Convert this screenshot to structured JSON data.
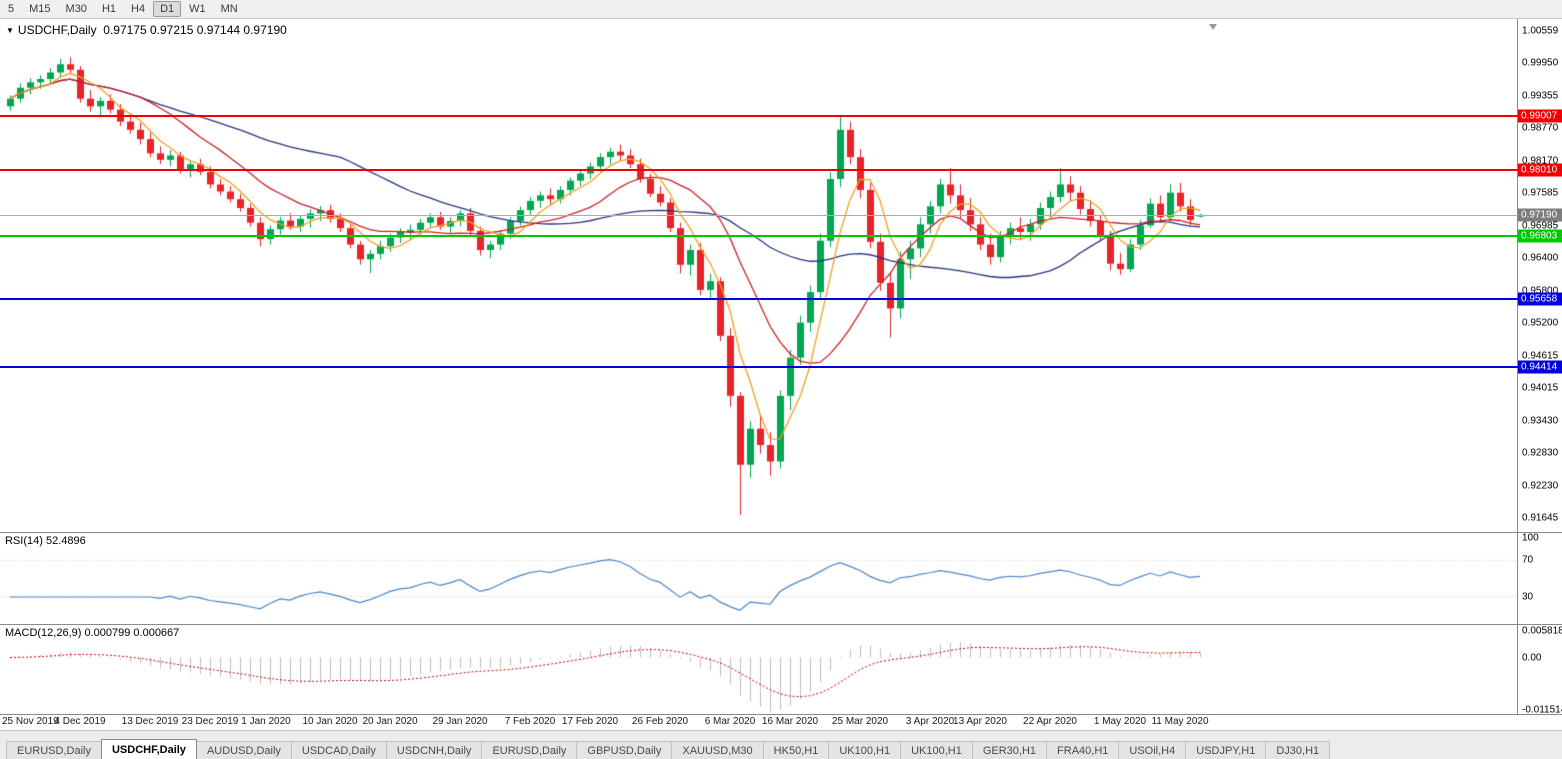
{
  "colors": {
    "up": "#00a651",
    "down": "#e8232a",
    "chrome_bg": "#f0f0f0"
  },
  "toolbar": {
    "timeframes": [
      {
        "label": "5",
        "active": false
      },
      {
        "label": "M15",
        "active": false
      },
      {
        "label": "M30",
        "active": false
      },
      {
        "label": "H1",
        "active": false
      },
      {
        "label": "H4",
        "active": false
      },
      {
        "label": "D1",
        "active": true
      },
      {
        "label": "W1",
        "active": false
      },
      {
        "label": "MN",
        "active": false
      }
    ]
  },
  "chart": {
    "caret": "▼",
    "header": "USDCHF,Daily",
    "ohlc": "0.97175 0.97215 0.97144 0.97190"
  },
  "chart_data": {
    "type": "candlestick",
    "symbol": "USDCHF",
    "timeframe": "Daily",
    "current": {
      "open": 0.97175,
      "high": 0.97215,
      "low": 0.97144,
      "close": 0.9719
    },
    "y_axis_labels": [
      "1.00559",
      "0.99950",
      "0.99355",
      "0.98770",
      "0.98170",
      "0.97585",
      "0.96985",
      "0.96400",
      "0.95800",
      "0.95200",
      "0.94615",
      "0.94015",
      "0.93430",
      "0.92830",
      "0.92230",
      "0.91645"
    ],
    "x_ticks": [
      {
        "label": "25 Nov 2019",
        "index": 0
      },
      {
        "label": "4 Dec 2019",
        "index": 7
      },
      {
        "label": "13 Dec 2019",
        "index": 14
      },
      {
        "label": "23 Dec 2019",
        "index": 20
      },
      {
        "label": "1 Jan 2020",
        "index": 25.6
      },
      {
        "label": "10 Jan 2020",
        "index": 32
      },
      {
        "label": "20 Jan 2020",
        "index": 38
      },
      {
        "label": "29 Jan 2020",
        "index": 45
      },
      {
        "label": "7 Feb 2020",
        "index": 52
      },
      {
        "label": "17 Feb 2020",
        "index": 58
      },
      {
        "label": "26 Feb 2020",
        "index": 65
      },
      {
        "label": "6 Mar 2020",
        "index": 72
      },
      {
        "label": "16 Mar 2020",
        "index": 78
      },
      {
        "label": "25 Mar 2020",
        "index": 85
      },
      {
        "label": "3 Apr 2020",
        "index": 92
      },
      {
        "label": "13 Apr 2020",
        "index": 97
      },
      {
        "label": "22 Apr 2020",
        "index": 104
      },
      {
        "label": "1 May 2020",
        "index": 111
      },
      {
        "label": "11 May 2020",
        "index": 117
      }
    ],
    "horizontal_levels": [
      {
        "value": "0.99007",
        "color": "#f20000",
        "kind": "resistance"
      },
      {
        "value": "0.98010",
        "color": "#f20000",
        "kind": "resistance"
      },
      {
        "value": "0.96803",
        "color": "#00c800",
        "kind": "support"
      },
      {
        "value": "0.95658",
        "color": "#0000e0",
        "kind": "support"
      },
      {
        "value": "0.94414",
        "color": "#0000e0",
        "kind": "support"
      }
    ],
    "current_price_marker": {
      "value": "0.97190",
      "line_color": "#ababab",
      "tag_bg": "#7d7d7d"
    },
    "moving_averages": [
      {
        "period": 5,
        "color": "#f0a020"
      },
      {
        "period": 13,
        "color": "#cc2127"
      },
      {
        "period": 34,
        "color": "#24357d"
      }
    ],
    "rsi": {
      "header": "RSI(14) 52.4896",
      "period": 14,
      "levels": [
        "100",
        "70",
        "30"
      ],
      "line_color": "#4a86c8"
    },
    "macd": {
      "header": "MACD(12,26,9) 0.000799 0.000667",
      "fast": 12,
      "slow": 26,
      "signal": 9,
      "axis_labels": [
        "0.005818",
        "0.00",
        "-0.011514"
      ],
      "hist_color": "#bdbdbd",
      "signal_color": "#cc0000"
    },
    "candles": [
      [
        0.9918,
        0.9938,
        0.991,
        0.9932
      ],
      [
        0.9932,
        0.996,
        0.9925,
        0.9952
      ],
      [
        0.9952,
        0.997,
        0.994,
        0.9962
      ],
      [
        0.9962,
        0.9975,
        0.995,
        0.9968
      ],
      [
        0.9968,
        0.9988,
        0.9958,
        0.998
      ],
      [
        0.998,
        1.0005,
        0.997,
        0.9995
      ],
      [
        0.9995,
        1.0008,
        0.9978,
        0.9985
      ],
      [
        0.9985,
        0.9992,
        0.9925,
        0.9932
      ],
      [
        0.9932,
        0.9948,
        0.9908,
        0.9918
      ],
      [
        0.9918,
        0.9935,
        0.9898,
        0.9928
      ],
      [
        0.9928,
        0.994,
        0.9905,
        0.9912
      ],
      [
        0.9912,
        0.9922,
        0.9882,
        0.989
      ],
      [
        0.989,
        0.9905,
        0.9868,
        0.9875
      ],
      [
        0.9875,
        0.9888,
        0.9848,
        0.9858
      ],
      [
        0.9858,
        0.987,
        0.9825,
        0.9832
      ],
      [
        0.9832,
        0.9845,
        0.9812,
        0.982
      ],
      [
        0.982,
        0.9838,
        0.9808,
        0.9828
      ],
      [
        0.9828,
        0.9835,
        0.9795,
        0.9802
      ],
      [
        0.9802,
        0.9818,
        0.9788,
        0.9812
      ],
      [
        0.9812,
        0.9822,
        0.9792,
        0.9798
      ],
      [
        0.9798,
        0.9808,
        0.9768,
        0.9775
      ],
      [
        0.9775,
        0.9785,
        0.9755,
        0.9762
      ],
      [
        0.9762,
        0.9772,
        0.9742,
        0.9748
      ],
      [
        0.9748,
        0.9758,
        0.9725,
        0.9732
      ],
      [
        0.9732,
        0.974,
        0.9698,
        0.9705
      ],
      [
        0.9705,
        0.9715,
        0.9662,
        0.9675
      ],
      [
        0.9675,
        0.97,
        0.9665,
        0.9693
      ],
      [
        0.9693,
        0.9716,
        0.9683,
        0.9709
      ],
      [
        0.9709,
        0.9722,
        0.9692,
        0.9698
      ],
      [
        0.9698,
        0.9718,
        0.9688,
        0.9712
      ],
      [
        0.9712,
        0.973,
        0.9696,
        0.9722
      ],
      [
        0.9722,
        0.9736,
        0.9708,
        0.9728
      ],
      [
        0.9728,
        0.9738,
        0.9705,
        0.9712
      ],
      [
        0.9712,
        0.9722,
        0.9688,
        0.9695
      ],
      [
        0.9695,
        0.9702,
        0.9658,
        0.9665
      ],
      [
        0.9665,
        0.9672,
        0.9628,
        0.9638
      ],
      [
        0.9638,
        0.9655,
        0.9613,
        0.9648
      ],
      [
        0.9648,
        0.9672,
        0.9638,
        0.9662
      ],
      [
        0.9662,
        0.9685,
        0.9652,
        0.9678
      ],
      [
        0.9678,
        0.9695,
        0.9668,
        0.9688
      ],
      [
        0.9688,
        0.9702,
        0.9675,
        0.9692
      ],
      [
        0.9692,
        0.9712,
        0.9682,
        0.9705
      ],
      [
        0.9705,
        0.9722,
        0.9695,
        0.9715
      ],
      [
        0.9715,
        0.9725,
        0.9692,
        0.9698
      ],
      [
        0.9698,
        0.9715,
        0.9685,
        0.9708
      ],
      [
        0.9708,
        0.9728,
        0.9698,
        0.9722
      ],
      [
        0.9722,
        0.9732,
        0.9682,
        0.969
      ],
      [
        0.969,
        0.9698,
        0.9645,
        0.9655
      ],
      [
        0.9655,
        0.9672,
        0.964,
        0.9665
      ],
      [
        0.9665,
        0.9692,
        0.9655,
        0.9685
      ],
      [
        0.9685,
        0.9715,
        0.9675,
        0.9708
      ],
      [
        0.9708,
        0.9735,
        0.97,
        0.9728
      ],
      [
        0.9728,
        0.9752,
        0.9718,
        0.9745
      ],
      [
        0.9745,
        0.9762,
        0.9732,
        0.9755
      ],
      [
        0.9755,
        0.9768,
        0.9738,
        0.9748
      ],
      [
        0.9748,
        0.9772,
        0.974,
        0.9765
      ],
      [
        0.9765,
        0.9788,
        0.9755,
        0.9782
      ],
      [
        0.9782,
        0.9802,
        0.9772,
        0.9795
      ],
      [
        0.9795,
        0.9815,
        0.9785,
        0.9808
      ],
      [
        0.9808,
        0.9832,
        0.9798,
        0.9825
      ],
      [
        0.9825,
        0.9842,
        0.9812,
        0.9835
      ],
      [
        0.9835,
        0.9848,
        0.9818,
        0.9828
      ],
      [
        0.9828,
        0.984,
        0.9805,
        0.9812
      ],
      [
        0.9812,
        0.9822,
        0.9778,
        0.9785
      ],
      [
        0.9785,
        0.9795,
        0.9752,
        0.9758
      ],
      [
        0.9758,
        0.9772,
        0.9735,
        0.9742
      ],
      [
        0.9742,
        0.975,
        0.9688,
        0.9695
      ],
      [
        0.9695,
        0.9705,
        0.9612,
        0.9628
      ],
      [
        0.9628,
        0.9665,
        0.9608,
        0.9655
      ],
      [
        0.9655,
        0.9668,
        0.9572,
        0.9582
      ],
      [
        0.9582,
        0.9612,
        0.9565,
        0.9598
      ],
      [
        0.9598,
        0.9605,
        0.9488,
        0.9498
      ],
      [
        0.9498,
        0.9512,
        0.9368,
        0.9388
      ],
      [
        0.9388,
        0.9395,
        0.917,
        0.9262
      ],
      [
        0.9262,
        0.9342,
        0.9238,
        0.9328
      ],
      [
        0.9328,
        0.9355,
        0.9282,
        0.9298
      ],
      [
        0.9298,
        0.9322,
        0.9242,
        0.9268
      ],
      [
        0.9268,
        0.9398,
        0.9255,
        0.9388
      ],
      [
        0.9388,
        0.9472,
        0.9362,
        0.9458
      ],
      [
        0.9458,
        0.9535,
        0.9445,
        0.9522
      ],
      [
        0.9522,
        0.959,
        0.9505,
        0.9578
      ],
      [
        0.9578,
        0.9685,
        0.9565,
        0.9672
      ],
      [
        0.9672,
        0.9798,
        0.966,
        0.9785
      ],
      [
        0.9785,
        0.9901,
        0.977,
        0.9875
      ],
      [
        0.9875,
        0.989,
        0.9812,
        0.9825
      ],
      [
        0.9825,
        0.984,
        0.975,
        0.9765
      ],
      [
        0.9765,
        0.9778,
        0.9658,
        0.967
      ],
      [
        0.967,
        0.9685,
        0.958,
        0.9595
      ],
      [
        0.9595,
        0.9615,
        0.9495,
        0.9548
      ],
      [
        0.9548,
        0.9652,
        0.953,
        0.9638
      ],
      [
        0.9638,
        0.9672,
        0.9602,
        0.9658
      ],
      [
        0.9658,
        0.9715,
        0.9642,
        0.9702
      ],
      [
        0.9702,
        0.9745,
        0.9685,
        0.9735
      ],
      [
        0.9735,
        0.9785,
        0.9722,
        0.9775
      ],
      [
        0.9775,
        0.9805,
        0.974,
        0.9755
      ],
      [
        0.9755,
        0.9775,
        0.9712,
        0.9728
      ],
      [
        0.9728,
        0.975,
        0.969,
        0.9702
      ],
      [
        0.9702,
        0.9715,
        0.9655,
        0.9665
      ],
      [
        0.9665,
        0.9685,
        0.9628,
        0.9642
      ],
      [
        0.9642,
        0.969,
        0.9632,
        0.968
      ],
      [
        0.968,
        0.9705,
        0.9665,
        0.9695
      ],
      [
        0.9695,
        0.9715,
        0.9675,
        0.9688
      ],
      [
        0.9688,
        0.9712,
        0.9672,
        0.9702
      ],
      [
        0.9702,
        0.9742,
        0.9692,
        0.9732
      ],
      [
        0.9732,
        0.9762,
        0.9715,
        0.9752
      ],
      [
        0.9752,
        0.9805,
        0.9742,
        0.9775
      ],
      [
        0.9775,
        0.979,
        0.9745,
        0.976
      ],
      [
        0.976,
        0.9772,
        0.972,
        0.973
      ],
      [
        0.973,
        0.9745,
        0.9698,
        0.9708
      ],
      [
        0.9708,
        0.972,
        0.967,
        0.968
      ],
      [
        0.968,
        0.969,
        0.9618,
        0.963
      ],
      [
        0.963,
        0.965,
        0.961,
        0.962
      ],
      [
        0.962,
        0.9675,
        0.9615,
        0.9665
      ],
      [
        0.9665,
        0.971,
        0.9655,
        0.97
      ],
      [
        0.97,
        0.975,
        0.9695,
        0.974
      ],
      [
        0.974,
        0.9755,
        0.9705,
        0.9715
      ],
      [
        0.9715,
        0.9775,
        0.9708,
        0.976
      ],
      [
        0.976,
        0.9778,
        0.9725,
        0.9735
      ],
      [
        0.9735,
        0.9748,
        0.97,
        0.971
      ],
      [
        0.97175,
        0.97215,
        0.97144,
        0.9719
      ]
    ]
  },
  "tabs": {
    "items": [
      {
        "label": "EURUSD,Daily",
        "active": false
      },
      {
        "label": "USDCHF,Daily",
        "active": true
      },
      {
        "label": "AUDUSD,Daily",
        "active": false
      },
      {
        "label": "USDCAD,Daily",
        "active": false
      },
      {
        "label": "USDCNH,Daily",
        "active": false
      },
      {
        "label": "EURUSD,Daily",
        "active": false
      },
      {
        "label": "GBPUSD,Daily",
        "active": false
      },
      {
        "label": "XAUUSD,M30",
        "active": false
      },
      {
        "label": "HK50,H1",
        "active": false
      },
      {
        "label": "UK100,H1",
        "active": false
      },
      {
        "label": "UK100,H1",
        "active": false
      },
      {
        "label": "GER30,H1",
        "active": false
      },
      {
        "label": "FRA40,H1",
        "active": false
      },
      {
        "label": "USOil,H4",
        "active": false
      },
      {
        "label": "USDJPY,H1",
        "active": false
      },
      {
        "label": "DJ30,H1",
        "active": false
      }
    ]
  }
}
